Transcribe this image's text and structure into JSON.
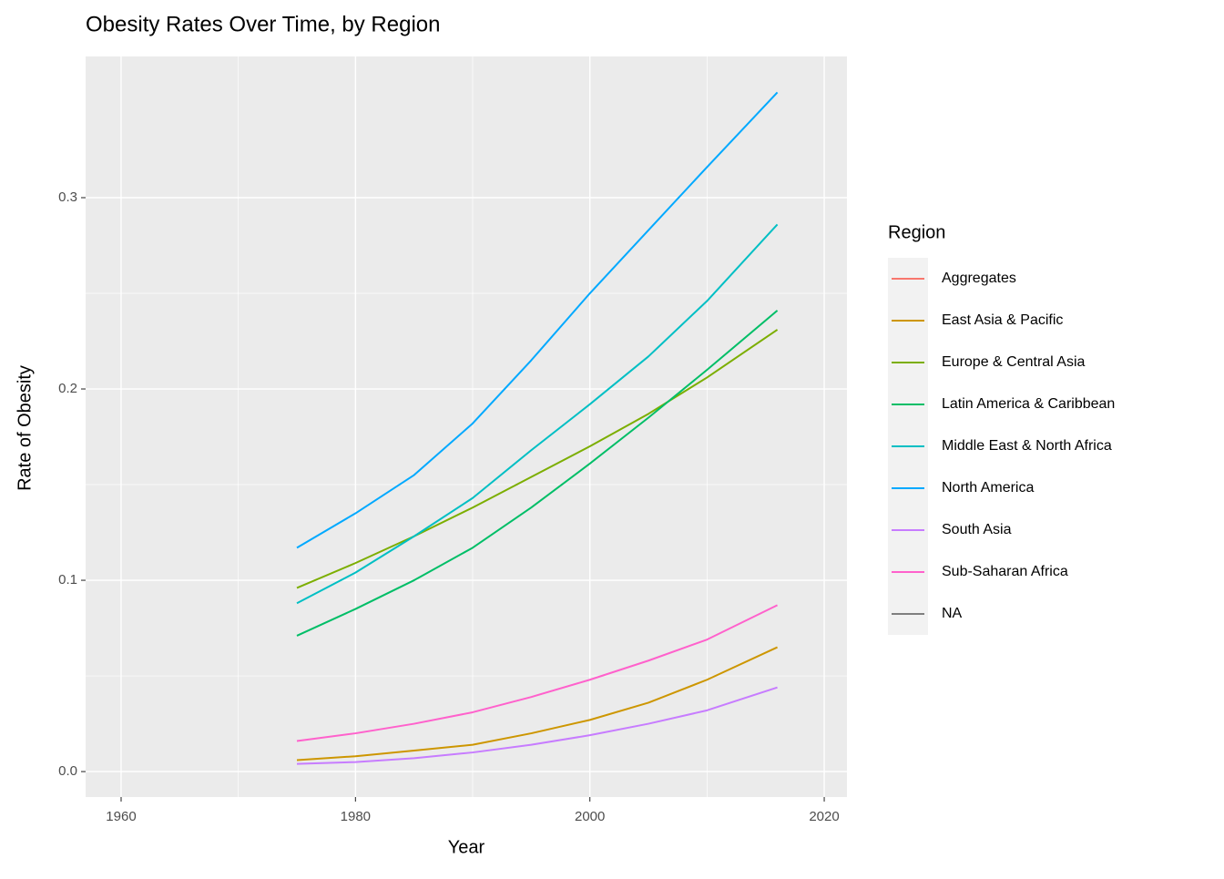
{
  "chart_data": {
    "type": "line",
    "title": "Obesity Rates Over Time, by Region",
    "x_label": "Year",
    "y_label": "Rate of Obesity",
    "x": [
      1975,
      1980,
      1985,
      1990,
      1995,
      2000,
      2005,
      2010,
      2016
    ],
    "series": [
      {
        "name": "Aggregates",
        "color": "#F8766D",
        "values": [
          null,
          null,
          null,
          null,
          null,
          null,
          null,
          null,
          null
        ]
      },
      {
        "name": "East Asia & Pacific",
        "color": "#CD9600",
        "values": [
          0.006,
          0.008,
          0.011,
          0.014,
          0.02,
          0.027,
          0.036,
          0.048,
          0.065
        ]
      },
      {
        "name": "Europe & Central Asia",
        "color": "#7CAE00",
        "values": [
          0.096,
          0.109,
          0.123,
          0.138,
          0.154,
          0.17,
          0.187,
          0.206,
          0.231
        ]
      },
      {
        "name": "Latin America & Caribbean",
        "color": "#00BE67",
        "values": [
          0.071,
          0.085,
          0.1,
          0.117,
          0.138,
          0.161,
          0.185,
          0.21,
          0.241
        ]
      },
      {
        "name": "Middle East & North Africa",
        "color": "#00BFC4",
        "values": [
          0.088,
          0.104,
          0.123,
          0.143,
          0.168,
          0.192,
          0.217,
          0.246,
          0.286
        ]
      },
      {
        "name": "North America",
        "color": "#00A9FF",
        "values": [
          0.117,
          0.135,
          0.155,
          0.182,
          0.215,
          0.25,
          0.283,
          0.316,
          0.355
        ]
      },
      {
        "name": "South Asia",
        "color": "#C77CFF",
        "values": [
          0.004,
          0.005,
          0.007,
          0.01,
          0.014,
          0.019,
          0.025,
          0.032,
          0.044
        ]
      },
      {
        "name": "Sub-Saharan Africa",
        "color": "#FF61CC",
        "values": [
          0.016,
          0.02,
          0.025,
          0.031,
          0.039,
          0.048,
          0.058,
          0.069,
          0.087
        ]
      },
      {
        "name": "NA",
        "color": "#7F7F7F",
        "values": [
          null,
          null,
          null,
          null,
          null,
          null,
          null,
          null,
          null
        ]
      }
    ],
    "legend_title": "Region",
    "legend_position": "right",
    "xlim": [
      1956.97,
      2021.94
    ],
    "xticks": [
      1960,
      1980,
      2000,
      2020
    ],
    "ylim": [
      -0.0133,
      0.3738
    ],
    "yticks": [
      {
        "value": 0,
        "label": "0.0"
      },
      0.1,
      0.2,
      0.3
    ],
    "grid": true,
    "minor_grid": true
  }
}
